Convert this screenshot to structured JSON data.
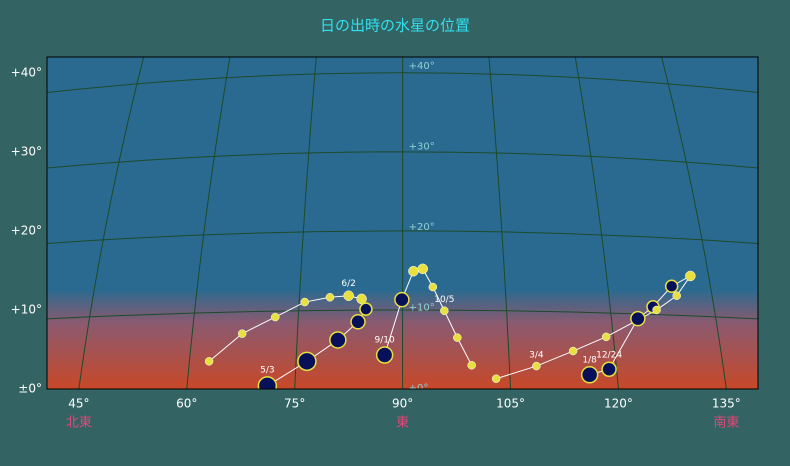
{
  "chart_data": {
    "type": "scatter",
    "title": "日の出時の水星の位置",
    "xlim": [
      40.57,
      139.4
    ],
    "ylim": [
      0,
      42
    ],
    "xticks": [
      {
        "value": 45,
        "label": "45°"
      },
      {
        "value": 60,
        "label": "60°"
      },
      {
        "value": 75,
        "label": "75°"
      },
      {
        "value": 90,
        "label": "90°"
      },
      {
        "value": 105,
        "label": "105°"
      },
      {
        "value": 120,
        "label": "120°"
      },
      {
        "value": 135,
        "label": "135°"
      }
    ],
    "yticks": [
      {
        "value": 0,
        "label": "±0°"
      },
      {
        "value": 10,
        "label": "+10°"
      },
      {
        "value": 20,
        "label": "+20°"
      },
      {
        "value": 30,
        "label": "+30°"
      },
      {
        "value": 40,
        "label": "+40°"
      }
    ],
    "meridian_labels": [
      {
        "value": 0,
        "label": "+0°"
      },
      {
        "value": 10,
        "label": "+10°"
      },
      {
        "value": 20,
        "label": "+20°"
      },
      {
        "value": 30,
        "label": "+30°"
      },
      {
        "value": 40,
        "label": "+40°"
      }
    ],
    "direction_labels": [
      {
        "value": 45,
        "label": "北東"
      },
      {
        "value": 90,
        "label": "東"
      },
      {
        "value": 135,
        "label": "南東"
      }
    ],
    "grid": true,
    "color": "#e8e040",
    "series": [
      {
        "x": [
          63.1,
          67.7,
          72.3,
          76.4,
          79.9,
          82.5,
          84.3,
          84.9,
          83.8,
          81.0,
          76.7,
          71.2
        ],
        "values": [
          3.5,
          7.0,
          9.1,
          11.0,
          11.6,
          11.8,
          11.4,
          10.1,
          8.5,
          6.2,
          3.5,
          0.4
        ],
        "sizes": [
          4,
          4,
          4,
          4,
          4,
          5,
          5,
          6,
          7,
          8,
          9,
          9
        ],
        "point_labels": [
          null,
          null,
          null,
          null,
          null,
          "6/2",
          null,
          null,
          null,
          null,
          null,
          "5/3"
        ]
      },
      {
        "x": [
          87.5,
          89.9,
          91.5,
          92.8,
          94.2,
          95.8,
          97.6,
          99.6
        ],
        "values": [
          4.3,
          11.3,
          14.9,
          15.2,
          12.9,
          9.9,
          6.5,
          3.0
        ],
        "sizes": [
          8,
          7,
          5,
          5,
          4,
          4,
          4,
          4
        ],
        "point_labels": [
          "9/10",
          null,
          null,
          null,
          null,
          "10/5",
          null,
          null
        ]
      },
      {
        "x": [
          116.0,
          118.7,
          122.7,
          124.8,
          127.4,
          130.0,
          128.1,
          125.3,
          118.3,
          113.7,
          108.6,
          103.0
        ],
        "values": [
          1.8,
          2.5,
          8.9,
          10.4,
          13.0,
          14.3,
          11.8,
          10.0,
          6.6,
          4.8,
          2.9,
          1.3
        ],
        "sizes": [
          8,
          7,
          7,
          6,
          6,
          5,
          4,
          4,
          4,
          4,
          4,
          4
        ],
        "point_labels": [
          "1/8",
          "12/24",
          null,
          null,
          null,
          null,
          null,
          null,
          null,
          null,
          "3/4",
          null
        ]
      }
    ]
  }
}
